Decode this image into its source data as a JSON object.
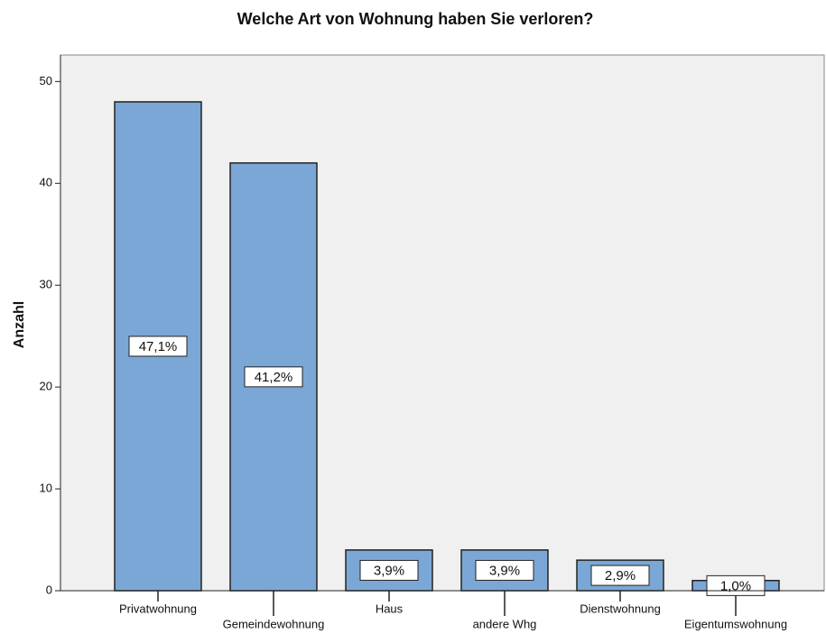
{
  "chart_data": {
    "type": "bar",
    "title": "Welche Art  von Wohnung haben Sie verloren?",
    "y_label": "Anzahl",
    "categories": [
      "Privatwohnung",
      "Gemeindewohnung",
      "Haus",
      "andere Whg",
      "Dienstwohnung",
      "Eigentumswohnung"
    ],
    "values": [
      48,
      42,
      4,
      4,
      3,
      1
    ],
    "percent_values": [
      47.1,
      41.2,
      3.9,
      3.9,
      2.9,
      1.0
    ],
    "percent_labels": [
      "47,1%",
      "41,2%",
      "3,9%",
      "3,9%",
      "2,9%",
      "1,0%"
    ],
    "color": "#7ba7d6",
    "ylim": [
      0,
      52.6
    ],
    "yticks": [
      0,
      10,
      20,
      30,
      40,
      50
    ]
  }
}
